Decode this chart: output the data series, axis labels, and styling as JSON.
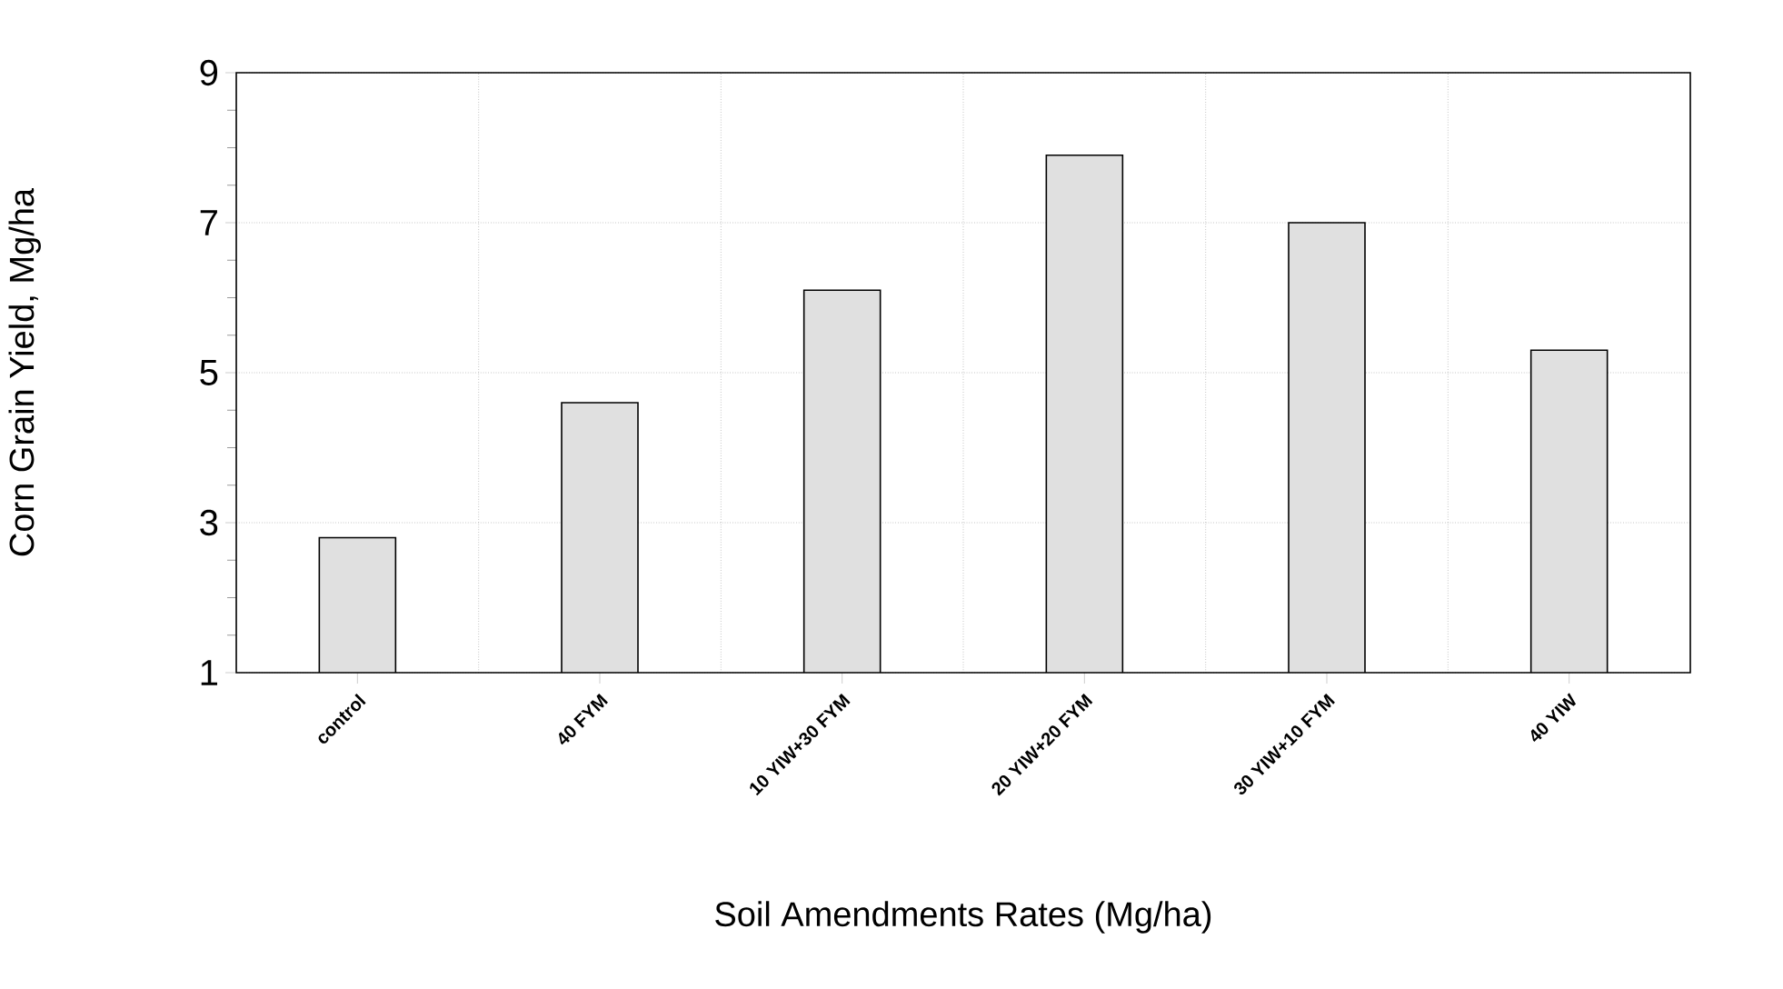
{
  "chart_data": {
    "type": "bar",
    "xlabel": "Soil Amendments Rates (Mg/ha)",
    "ylabel": "Corn Grain Yield, Mg/ha",
    "categories": [
      "control",
      "40 FYM",
      "10 YIW+30 FYM",
      "20 YIW+20 FYM",
      "30 YIW+10 FYM",
      "40 YIW"
    ],
    "values": [
      2.8,
      4.6,
      6.1,
      7.9,
      7.0,
      5.3
    ],
    "color": "#e0e0e0",
    "ylim": [
      1,
      9
    ],
    "yticks": [
      1,
      {
        "value": 1.5,
        "label": null
      },
      {
        "value": 2,
        "label": null
      },
      {
        "value": 2.5,
        "label": null
      },
      3,
      {
        "value": 3.5,
        "label": null
      },
      {
        "value": 4,
        "label": null
      },
      {
        "value": 4.5,
        "label": null
      },
      5,
      {
        "value": 5.5,
        "label": null
      },
      {
        "value": 6,
        "label": null
      },
      {
        "value": 6.5,
        "label": null
      },
      7,
      {
        "value": 7.5,
        "label": null
      },
      {
        "value": 8,
        "label": null
      },
      {
        "value": 8.5,
        "label": null
      },
      9
    ],
    "grid": true
  }
}
